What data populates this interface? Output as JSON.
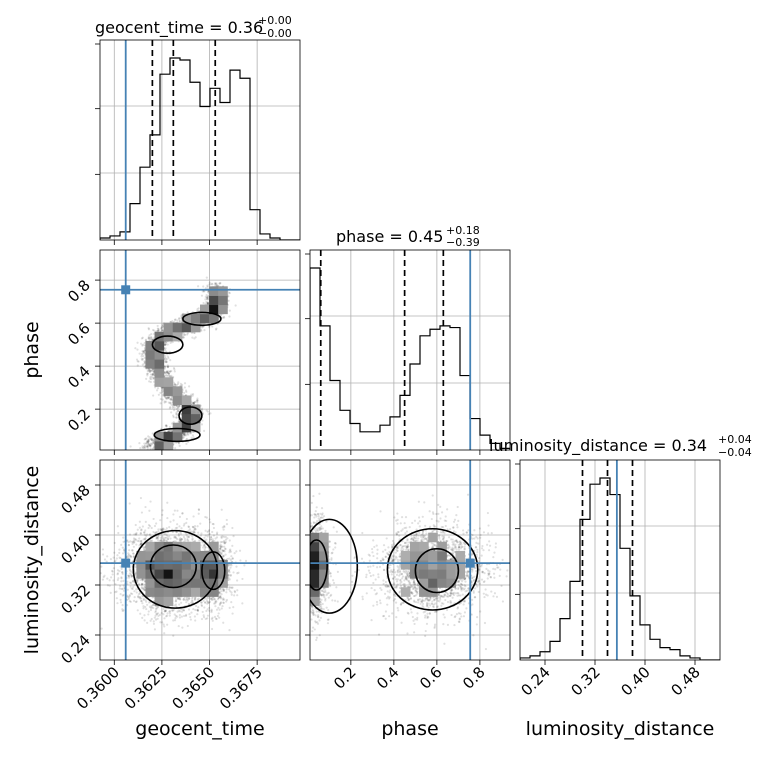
{
  "chart_data": {
    "type": "corner",
    "parameters": [
      {
        "name": "geocent_time",
        "axis_label": "geocent_time",
        "injection": 0.3606,
        "title_main": "geocent_time = 0.36",
        "title_sup": "+0.00",
        "title_sub": "−0.00",
        "quantiles": [
          0.362,
          0.3631,
          0.3653
        ],
        "ticks": [
          0.36,
          0.3625,
          0.365,
          0.3675
        ],
        "tick_labels": [
          "0.3600",
          "0.3625",
          "0.3650",
          "0.3675"
        ],
        "range": [
          0.35925,
          0.36975
        ]
      },
      {
        "name": "phase",
        "axis_label": "phase",
        "injection": 0.755,
        "title_main": "phase = 0.45",
        "title_sup": "+0.18",
        "title_sub": "−0.39",
        "quantiles": [
          0.06,
          0.45,
          0.63
        ],
        "ticks": [
          0.2,
          0.4,
          0.6,
          0.8
        ],
        "tick_labels": [
          "0.2",
          "0.4",
          "0.6",
          "0.8"
        ],
        "range": [
          0.01,
          0.94
        ]
      },
      {
        "name": "luminosity_distance",
        "axis_label": "luminosity_distance",
        "injection": 0.355,
        "title_main": "luminosity_distance = 0.34",
        "title_sup": "+0.04",
        "title_sub": "−0.04",
        "quantiles": [
          0.3,
          0.34,
          0.38
        ],
        "ticks": [
          0.24,
          0.32,
          0.4,
          0.48
        ],
        "tick_labels": [
          "0.24",
          "0.32",
          "0.40",
          "0.48"
        ],
        "range": [
          0.2,
          0.52
        ]
      }
    ],
    "histograms": [
      {
        "param": "geocent_time",
        "bin_edges": [
          0.35925,
          0.36975
        ],
        "counts": [
          1,
          2,
          4,
          18,
          36,
          52,
          82,
          90,
          89,
          78,
          66,
          75,
          68,
          84,
          80,
          15,
          3,
          1,
          0,
          0
        ]
      },
      {
        "param": "phase",
        "bin_edges": [
          0.01,
          0.94
        ],
        "counts": [
          110,
          75,
          42,
          24,
          16,
          11,
          11,
          15,
          20,
          33,
          52,
          69,
          73,
          75,
          74,
          45,
          19,
          9,
          4,
          1
        ]
      },
      {
        "param": "luminosity_distance",
        "bin_edges": [
          0.2,
          0.52
        ],
        "counts": [
          1,
          2,
          4,
          9,
          20,
          38,
          68,
          85,
          88,
          80,
          54,
          31,
          17,
          10,
          6,
          5,
          2,
          1,
          0,
          0
        ]
      }
    ],
    "scatter_2d": [
      {
        "x": "geocent_time",
        "y": "phase",
        "ridge": [
          [
            0.3618,
            0.02
          ],
          [
            0.3625,
            0.05
          ],
          [
            0.3632,
            0.08
          ],
          [
            0.3638,
            0.12
          ],
          [
            0.3641,
            0.17
          ],
          [
            0.3637,
            0.22
          ],
          [
            0.363,
            0.28
          ],
          [
            0.3624,
            0.35
          ],
          [
            0.3621,
            0.42
          ],
          [
            0.362,
            0.48
          ],
          [
            0.3624,
            0.53
          ],
          [
            0.3632,
            0.57
          ],
          [
            0.3641,
            0.6
          ],
          [
            0.3649,
            0.63
          ],
          [
            0.3654,
            0.67
          ],
          [
            0.3655,
            0.71
          ],
          [
            0.3652,
            0.76
          ]
        ]
      },
      {
        "x": "geocent_time",
        "y": "luminosity_distance",
        "blobs": [
          [
            0.3628,
            0.345,
            0.0012,
            0.034
          ],
          [
            0.3652,
            0.34,
            0.0005,
            0.03
          ]
        ]
      },
      {
        "x": "phase",
        "y": "luminosity_distance",
        "blobs": [
          [
            0.03,
            0.35,
            0.035,
            0.038
          ],
          [
            0.58,
            0.345,
            0.12,
            0.035
          ]
        ]
      }
    ],
    "legend": "none",
    "grid": true,
    "truth_color": "#4682b4"
  }
}
